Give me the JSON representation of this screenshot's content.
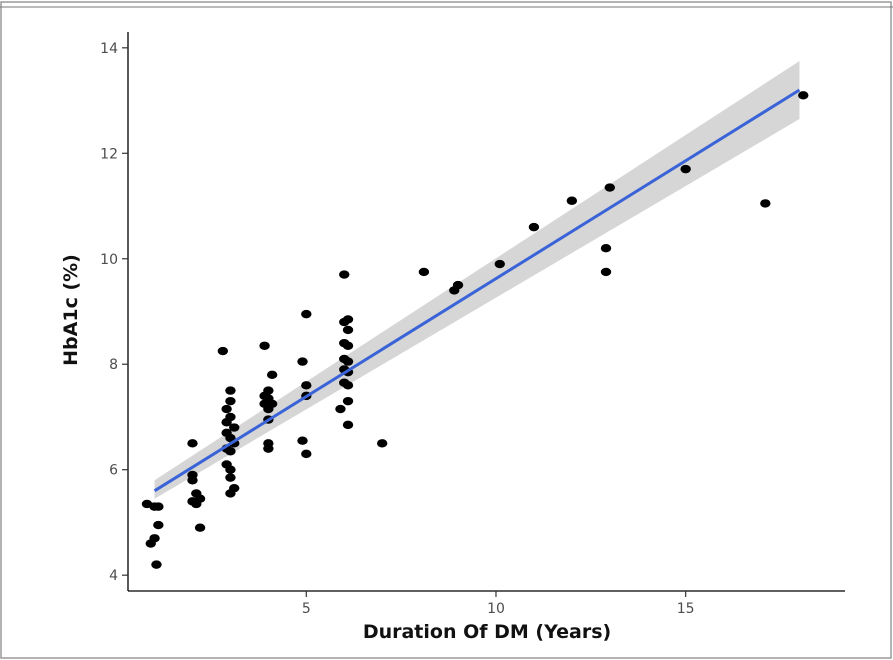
{
  "chart_data": {
    "type": "scatter",
    "title": "",
    "xlabel": "Duration Of DM (Years)",
    "ylabel": "HbA1c (%)",
    "xlim": [
      0.3,
      19.2
    ],
    "ylim": [
      3.7,
      14.3
    ],
    "xticks": [
      5,
      10,
      15
    ],
    "yticks": [
      4,
      6,
      8,
      10,
      12,
      14
    ],
    "grid": false,
    "legend": "none",
    "colors": {
      "points": "#000000",
      "fit_line": "#3a63d8",
      "confidence_band": "#cfcfcf"
    },
    "fit": {
      "method": "linear",
      "x": [
        1,
        18
      ],
      "y": [
        5.6,
        13.2
      ],
      "ci_lower": [
        5.45,
        12.65
      ],
      "ci_upper": [
        5.8,
        13.75
      ]
    },
    "points": [
      [
        0.8,
        5.35
      ],
      [
        1.0,
        5.3
      ],
      [
        1.1,
        5.3
      ],
      [
        0.9,
        4.6
      ],
      [
        1.0,
        4.7
      ],
      [
        1.1,
        4.95
      ],
      [
        1.05,
        4.2
      ],
      [
        2.0,
        6.5
      ],
      [
        2.0,
        5.9
      ],
      [
        2.0,
        5.8
      ],
      [
        2.1,
        5.55
      ],
      [
        2.0,
        5.4
      ],
      [
        2.2,
        5.45
      ],
      [
        2.1,
        5.35
      ],
      [
        2.2,
        4.9
      ],
      [
        2.8,
        8.25
      ],
      [
        3.0,
        7.5
      ],
      [
        3.0,
        7.3
      ],
      [
        2.9,
        7.15
      ],
      [
        3.0,
        7.0
      ],
      [
        2.9,
        6.9
      ],
      [
        3.1,
        6.8
      ],
      [
        2.9,
        6.7
      ],
      [
        3.0,
        6.6
      ],
      [
        3.1,
        6.5
      ],
      [
        2.9,
        6.4
      ],
      [
        3.0,
        6.35
      ],
      [
        2.9,
        6.1
      ],
      [
        3.0,
        6.0
      ],
      [
        3.0,
        5.85
      ],
      [
        3.1,
        5.65
      ],
      [
        3.0,
        5.55
      ],
      [
        3.9,
        8.35
      ],
      [
        4.1,
        7.8
      ],
      [
        4.0,
        7.5
      ],
      [
        3.9,
        7.4
      ],
      [
        4.0,
        7.35
      ],
      [
        3.9,
        7.25
      ],
      [
        4.1,
        7.25
      ],
      [
        4.0,
        7.15
      ],
      [
        4.0,
        6.95
      ],
      [
        4.0,
        6.5
      ],
      [
        4.0,
        6.4
      ],
      [
        5.0,
        8.95
      ],
      [
        4.9,
        8.05
      ],
      [
        5.0,
        7.6
      ],
      [
        5.0,
        7.4
      ],
      [
        4.9,
        6.55
      ],
      [
        5.0,
        6.3
      ],
      [
        7.0,
        6.5
      ],
      [
        6.0,
        9.7
      ],
      [
        6.0,
        8.8
      ],
      [
        6.1,
        8.85
      ],
      [
        6.1,
        8.65
      ],
      [
        6.0,
        8.4
      ],
      [
        6.1,
        8.35
      ],
      [
        6.0,
        8.1
      ],
      [
        6.1,
        8.05
      ],
      [
        6.0,
        7.9
      ],
      [
        6.1,
        7.85
      ],
      [
        6.0,
        7.65
      ],
      [
        6.1,
        7.6
      ],
      [
        6.1,
        7.3
      ],
      [
        5.9,
        7.15
      ],
      [
        6.1,
        6.85
      ],
      [
        8.1,
        9.75
      ],
      [
        8.9,
        9.4
      ],
      [
        9.0,
        9.5
      ],
      [
        10.1,
        9.9
      ],
      [
        11.0,
        10.6
      ],
      [
        12.0,
        11.1
      ],
      [
        13.0,
        11.35
      ],
      [
        12.9,
        10.2
      ],
      [
        12.9,
        9.75
      ],
      [
        15.0,
        11.7
      ],
      [
        17.1,
        11.05
      ],
      [
        18.1,
        13.1
      ]
    ]
  }
}
